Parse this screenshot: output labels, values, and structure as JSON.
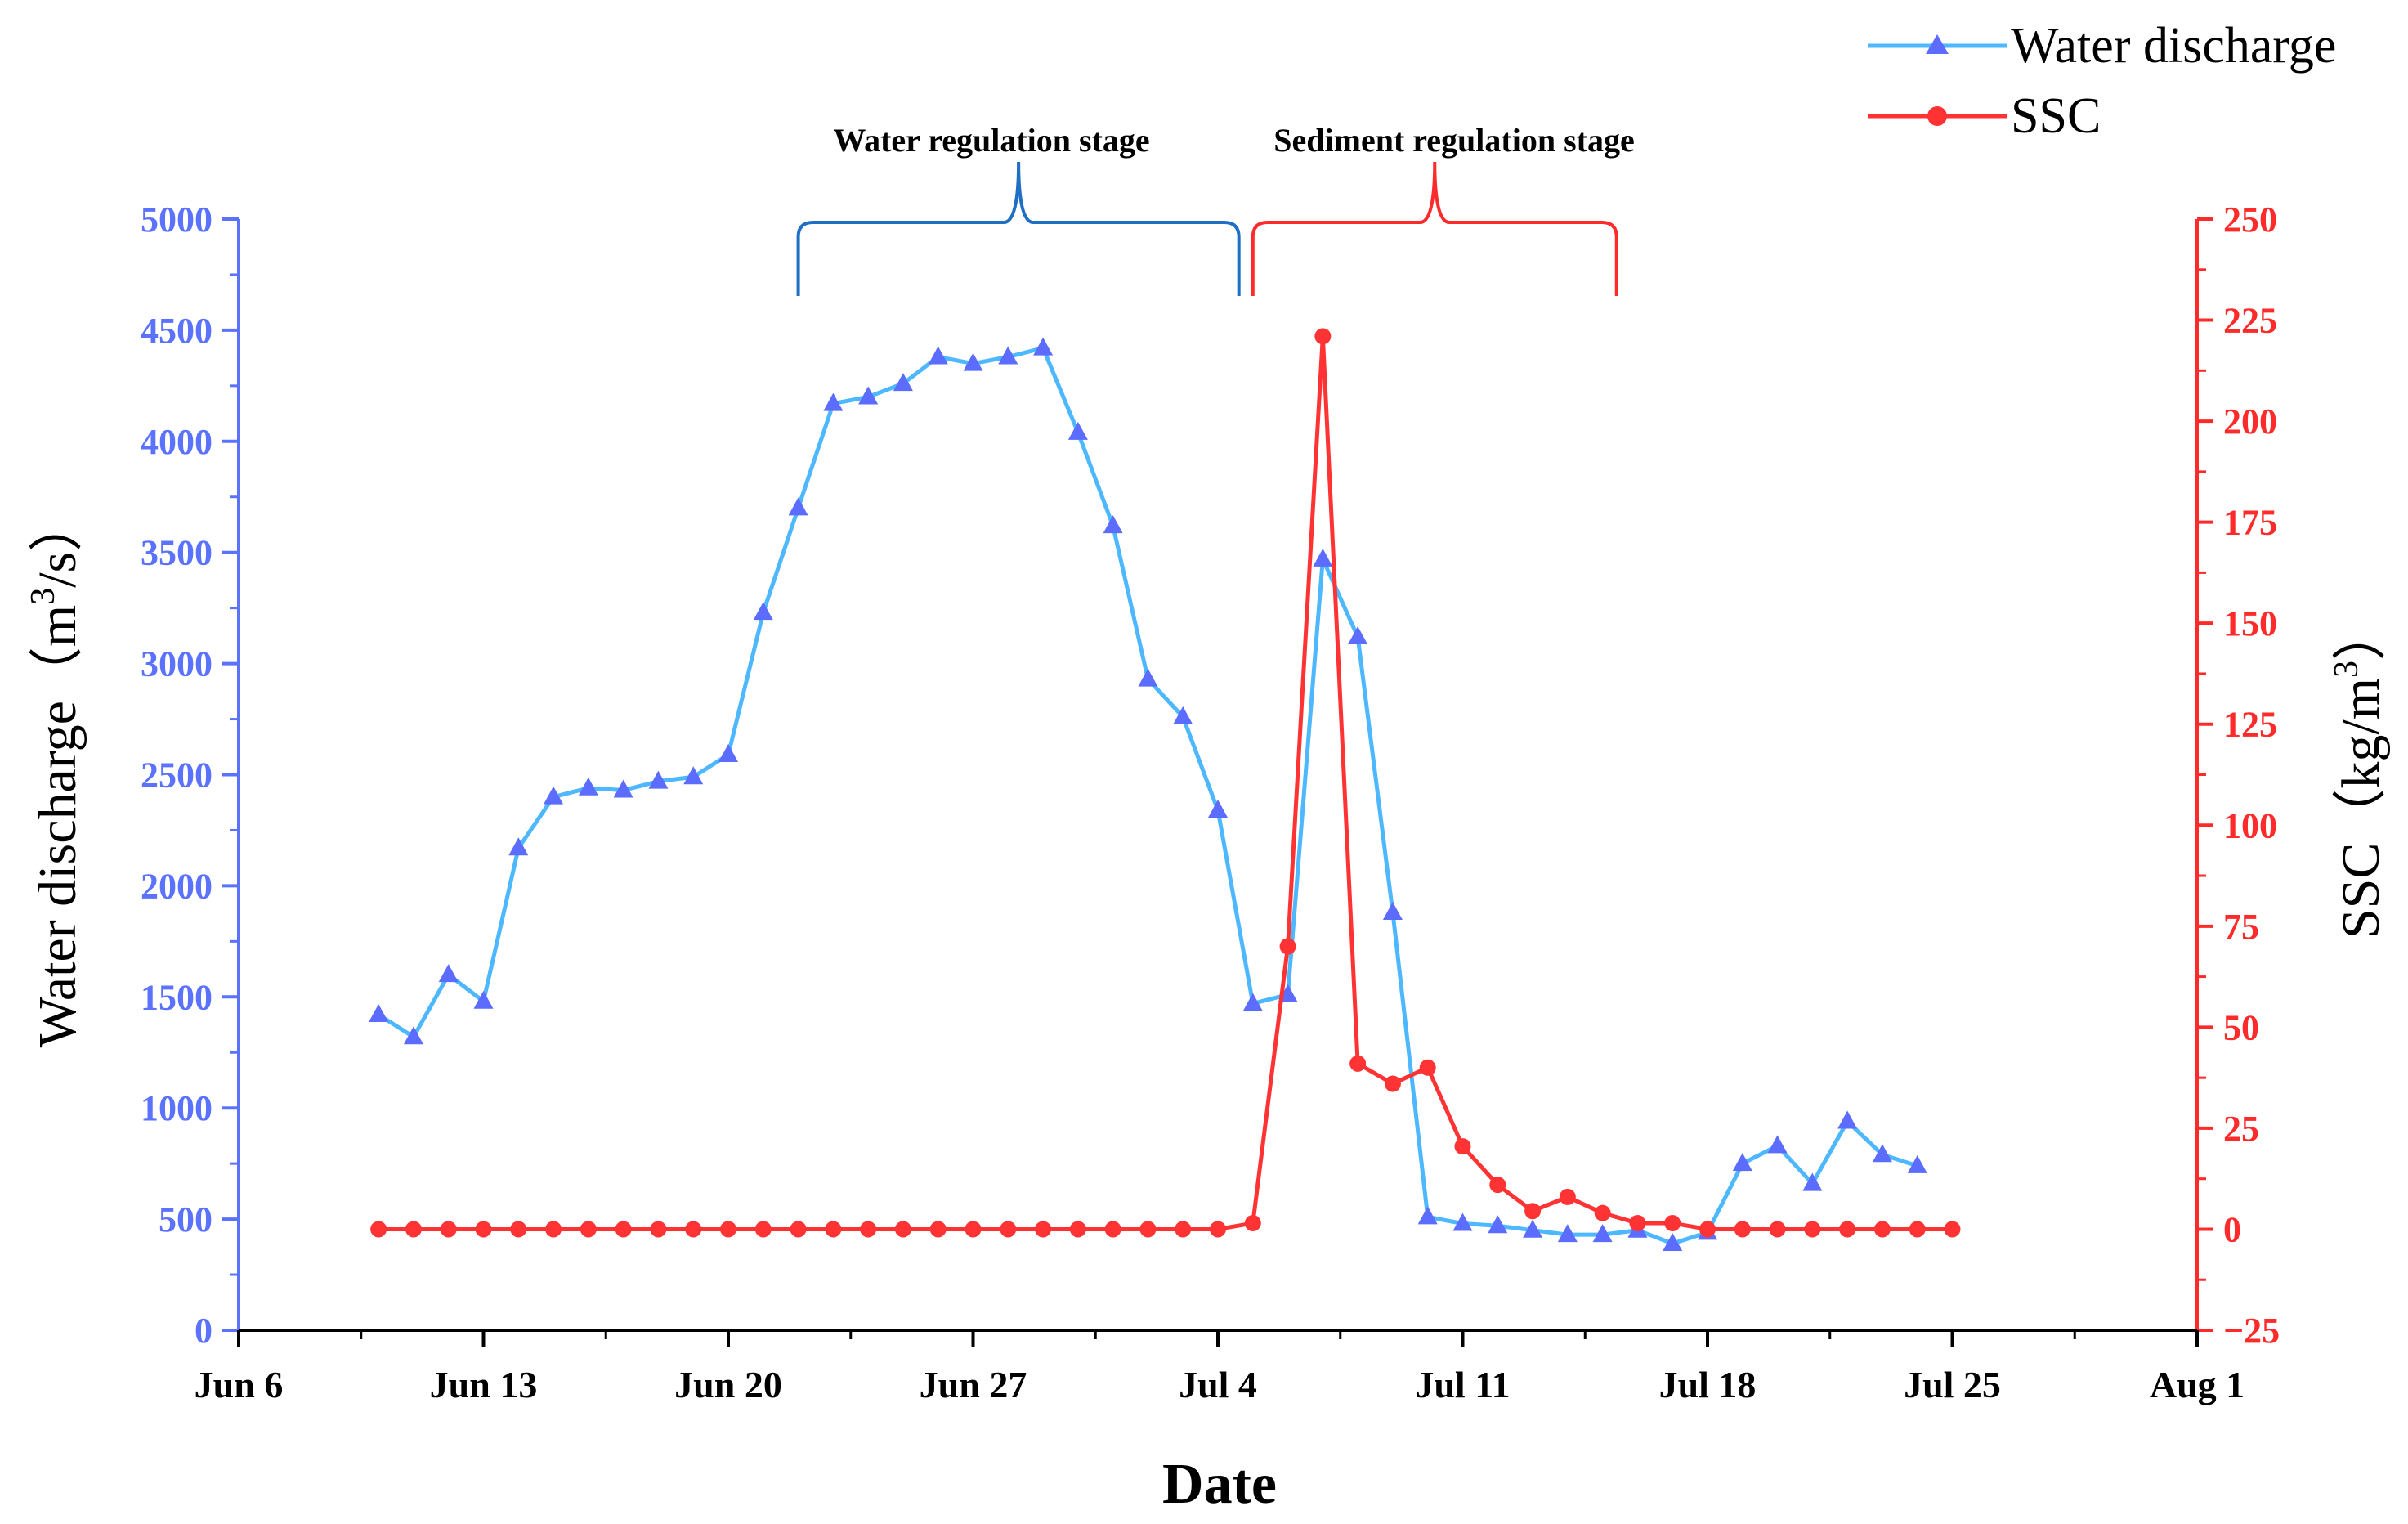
{
  "chart_data": {
    "type": "line",
    "xlabel": "Date",
    "x_ticks": [
      "Jun 6",
      "Jun 13",
      "Jun 20",
      "Jun 27",
      "Jul 4",
      "Jul 11",
      "Jul 18",
      "Jul 25",
      "Aug 1"
    ],
    "x_range_days": [
      0,
      56
    ],
    "x_start_date": "Jun 6",
    "y_left": {
      "label": "Water discharge（m",
      "label_sup": "3",
      "label_end": "/s）",
      "range": [
        0,
        5000
      ],
      "ticks": [
        "0",
        "500",
        "1000",
        "1500",
        "2000",
        "2500",
        "3000",
        "3500",
        "4000",
        "4500",
        "5000"
      ],
      "color": "#5b72ff"
    },
    "y_right": {
      "label": "SSC（kg/m",
      "label_sup": "3",
      "label_end": "）",
      "range": [
        -25,
        250
      ],
      "ticks": [
        "−25",
        "0",
        "25",
        "50",
        "75",
        "100",
        "125",
        "150",
        "175",
        "200",
        "225",
        "250"
      ],
      "color": "#ff2a2a"
    },
    "series": [
      {
        "name": "Water discharge",
        "axis": "left",
        "color": "#4db8ff",
        "marker": "triangle",
        "marker_color": "#5b6cff",
        "x": [
          4,
          5,
          6,
          7,
          8,
          9,
          10,
          11,
          12,
          13,
          14,
          15,
          16,
          17,
          18,
          19,
          20,
          21,
          22,
          23,
          24,
          25,
          26,
          27,
          28,
          29,
          30,
          31,
          32,
          33,
          34,
          35,
          36,
          37,
          38,
          39,
          40,
          41,
          42,
          43,
          44,
          45,
          46,
          47,
          48
        ],
        "values": [
          1420,
          1320,
          1600,
          1480,
          2170,
          2400,
          2440,
          2430,
          2470,
          2490,
          2590,
          3230,
          3700,
          4170,
          4200,
          4260,
          4380,
          4350,
          4380,
          4420,
          4040,
          3620,
          2930,
          2760,
          2340,
          1470,
          1510,
          3470,
          3120,
          1880,
          510,
          480,
          470,
          450,
          430,
          430,
          450,
          390,
          440,
          750,
          830,
          660,
          940,
          790,
          740
        ]
      },
      {
        "name": "SSC",
        "axis": "right",
        "color": "#ff3333",
        "marker": "circle",
        "marker_color": "#ff3333",
        "x": [
          4,
          5,
          6,
          7,
          8,
          9,
          10,
          11,
          12,
          13,
          14,
          15,
          16,
          17,
          18,
          19,
          20,
          21,
          22,
          23,
          24,
          25,
          26,
          27,
          28,
          29,
          30,
          31,
          32,
          33,
          34,
          35,
          36,
          37,
          38,
          39,
          40,
          41,
          42,
          43,
          44,
          45,
          46,
          47,
          48,
          49
        ],
        "values": [
          0,
          0,
          0,
          0,
          0,
          0,
          0,
          0,
          0,
          0,
          0,
          0,
          0,
          0,
          0,
          0,
          0,
          0,
          0,
          0,
          0,
          0,
          0,
          0,
          0,
          1.5,
          70,
          221,
          41,
          36,
          40,
          20.5,
          11,
          4.5,
          8,
          4,
          1.5,
          1.5,
          0,
          0,
          0,
          0,
          0,
          0,
          0,
          0
        ]
      }
    ],
    "annotations": [
      {
        "text": "Water regulation stage",
        "from_day": 16,
        "to_day": 28.6,
        "color": "#1f6fc4"
      },
      {
        "text": "Sediment regulation stage",
        "from_day": 29,
        "to_day": 39.4,
        "color": "#ff2a2a"
      }
    ],
    "legend": {
      "position": "top-right",
      "entries": [
        "Water discharge",
        "SSC"
      ]
    }
  }
}
